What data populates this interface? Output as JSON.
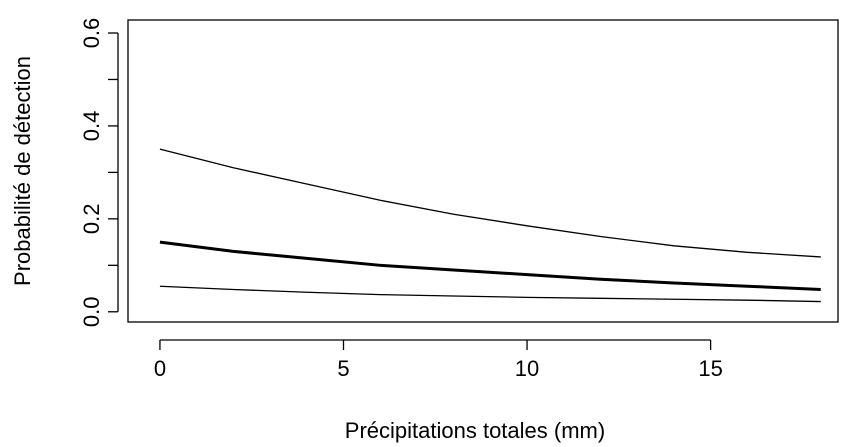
{
  "chart_data": {
    "type": "line",
    "xlabel": "Précipitations totales (mm)",
    "ylabel": "Probabilité de détection",
    "x": [
      0,
      2,
      4,
      6,
      8,
      10,
      12,
      14,
      16,
      18
    ],
    "series": [
      {
        "color": "#000000",
        "line_width": 1.3,
        "values": [
          0.35,
          0.31,
          0.275,
          0.24,
          0.21,
          0.185,
          0.162,
          0.142,
          0.128,
          0.118
        ]
      },
      {
        "color": "#000000",
        "line_width": 3,
        "values": [
          0.15,
          0.13,
          0.115,
          0.1,
          0.09,
          0.08,
          0.07,
          0.062,
          0.055,
          0.048
        ]
      },
      {
        "color": "#000000",
        "line_width": 1.3,
        "values": [
          0.055,
          0.048,
          0.042,
          0.037,
          0.034,
          0.031,
          0.029,
          0.027,
          0.025,
          0.022
        ]
      }
    ],
    "xlim": [
      -0.87,
      18.47
    ],
    "ylim": [
      -0.022,
      0.628
    ],
    "xticks": [
      0,
      5,
      10,
      15
    ],
    "yticks": [
      {
        "value": 0,
        "label": "0.0"
      },
      0.2,
      0.4,
      0.6
    ],
    "yminorticks": [
      0.1,
      0.3,
      0.5
    ],
    "grid": false
  }
}
